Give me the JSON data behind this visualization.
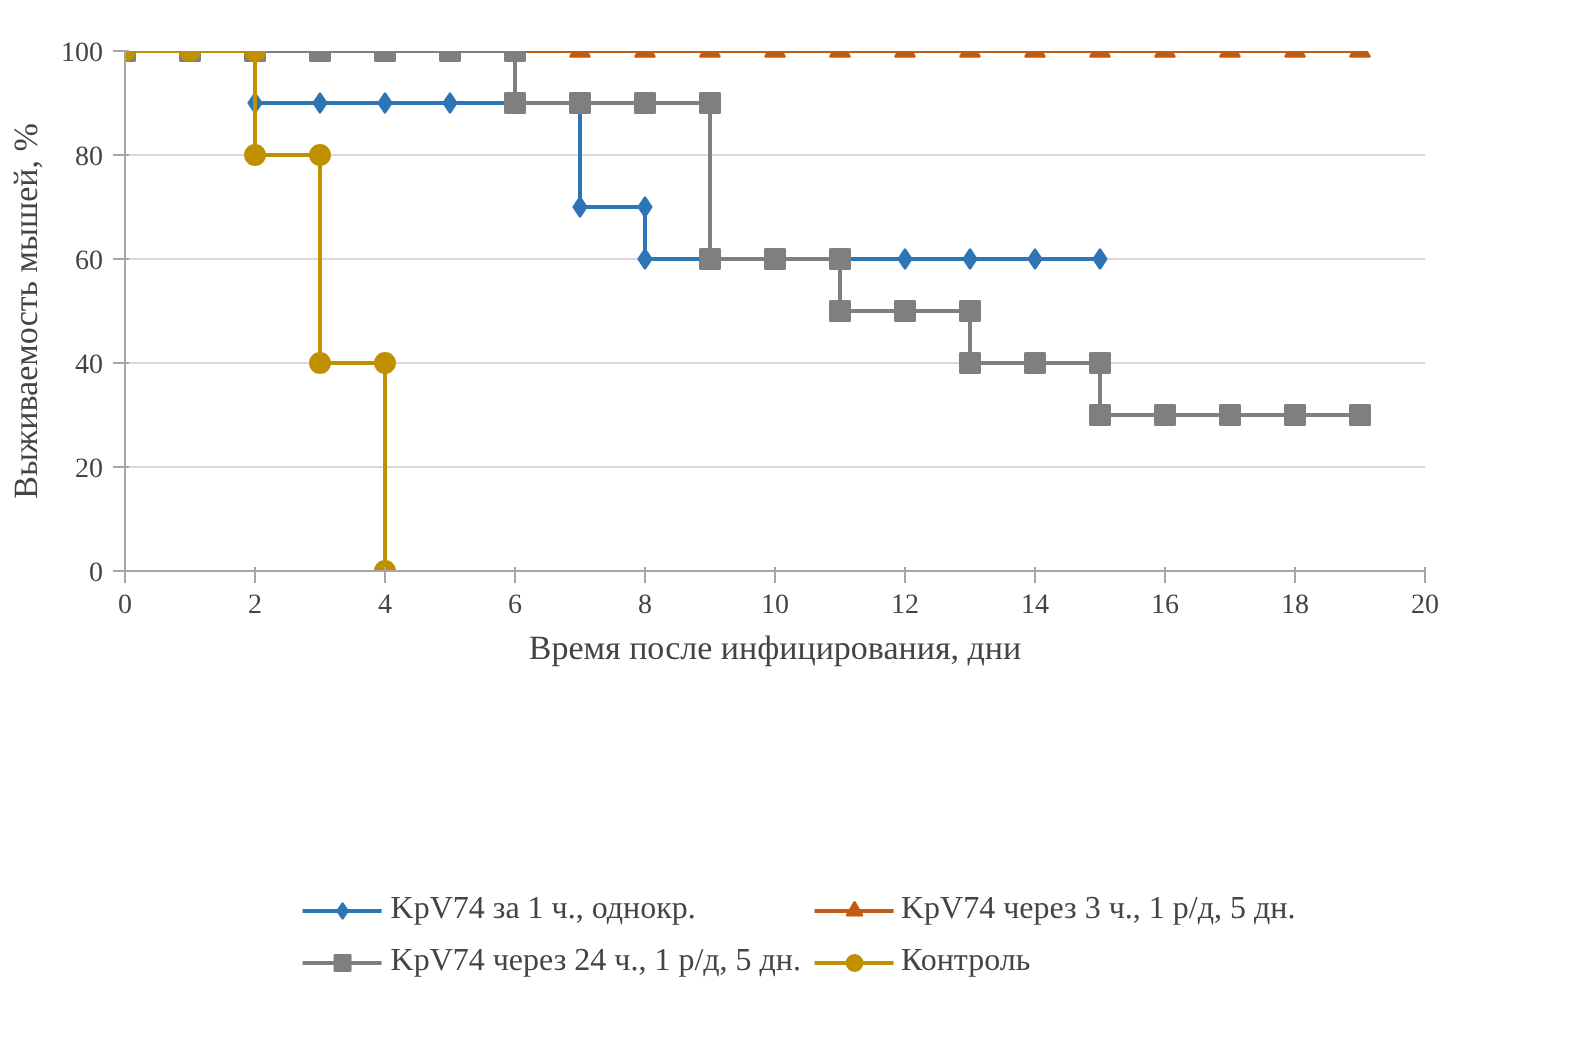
{
  "chart_data": {
    "type": "line",
    "xlabel": "Время после инфицирования, дни",
    "ylabel": "Выживаемость мышей, %",
    "xlim": [
      0,
      20
    ],
    "ylim": [
      0,
      100
    ],
    "xticks": [
      0,
      2,
      4,
      6,
      8,
      10,
      12,
      14,
      16,
      18,
      20
    ],
    "yticks": [
      0,
      20,
      40,
      60,
      80,
      100
    ],
    "grid": "y",
    "legend": "bottom",
    "line_style": "solid",
    "series": [
      {
        "name": "KpV74 за 1 ч., однокр.",
        "color": "#2e75b6",
        "marker": "diamond",
        "x": [
          2,
          3,
          4,
          5,
          6,
          7,
          7,
          8,
          8,
          9,
          10,
          11,
          12,
          13,
          14,
          15
        ],
        "values": [
          90,
          90,
          90,
          90,
          90,
          90,
          70,
          70,
          60,
          60,
          60,
          60,
          60,
          60,
          60,
          60
        ]
      },
      {
        "name": "KpV74 через 3 ч., 1 р/д, 5 дн.",
        "color": "#c55a11",
        "marker": "triangle",
        "x": [
          6,
          7,
          8,
          9,
          10,
          11,
          12,
          13,
          14,
          15,
          16,
          17,
          18,
          19
        ],
        "values": [
          100,
          100,
          100,
          100,
          100,
          100,
          100,
          100,
          100,
          100,
          100,
          100,
          100,
          100
        ]
      },
      {
        "name": "KpV74 через 24 ч., 1 р/д, 5 дн.",
        "color": "#7f7f7f",
        "marker": "square",
        "x": [
          0,
          1,
          2,
          3,
          4,
          5,
          6,
          6,
          7,
          8,
          9,
          9,
          10,
          11,
          11,
          12,
          13,
          13,
          14,
          15,
          15,
          16,
          17,
          18,
          19
        ],
        "values": [
          100,
          100,
          100,
          100,
          100,
          100,
          100,
          90,
          90,
          90,
          90,
          60,
          60,
          60,
          50,
          50,
          50,
          40,
          40,
          40,
          30,
          30,
          30,
          30,
          30
        ]
      },
      {
        "name": "Контроль",
        "color": "#bf9000",
        "marker": "circle",
        "x": [
          0,
          1,
          2,
          2,
          3,
          3,
          4,
          4
        ],
        "values": [
          100,
          100,
          100,
          80,
          80,
          40,
          40,
          0
        ]
      }
    ]
  }
}
